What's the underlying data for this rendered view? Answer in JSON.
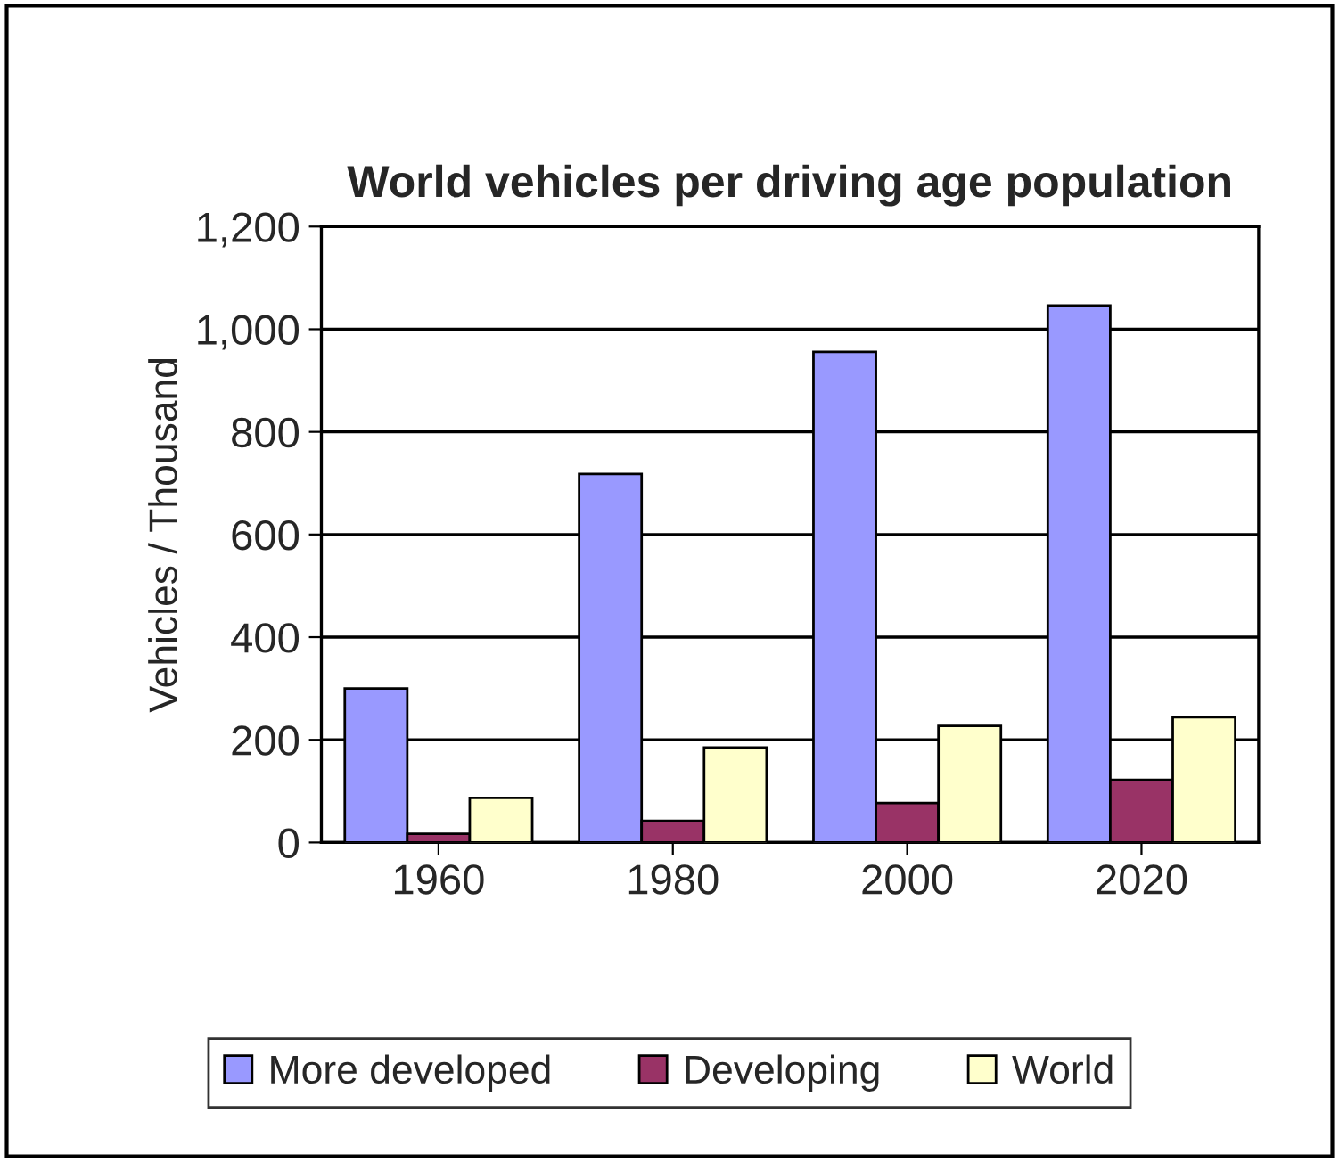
{
  "chart_data": {
    "type": "bar",
    "title": "World vehicles per driving age population",
    "ylabel": "Vehicles / Thousand",
    "categories": [
      "1960",
      "1980",
      "2000",
      "2020"
    ],
    "series": [
      {
        "name": "More developed",
        "color": "#9999ff",
        "values": [
          300,
          718,
          956,
          1046
        ]
      },
      {
        "name": "Developing",
        "color": "#993366",
        "values": [
          17,
          42,
          77,
          122
        ]
      },
      {
        "name": "World",
        "color": "#ffffcc",
        "values": [
          87,
          185,
          227,
          244
        ]
      }
    ],
    "ylim": [
      0,
      1200
    ],
    "yticks": [
      0,
      {
        "value": 200,
        "label": "200"
      },
      {
        "value": 400,
        "label": "400"
      },
      {
        "value": 600,
        "label": "600"
      },
      {
        "value": 800,
        "label": "800"
      },
      {
        "value": 1000,
        "label": "1,000"
      },
      {
        "value": 1200,
        "label": "1,200"
      }
    ],
    "grid": "y",
    "legend": "bottom"
  }
}
